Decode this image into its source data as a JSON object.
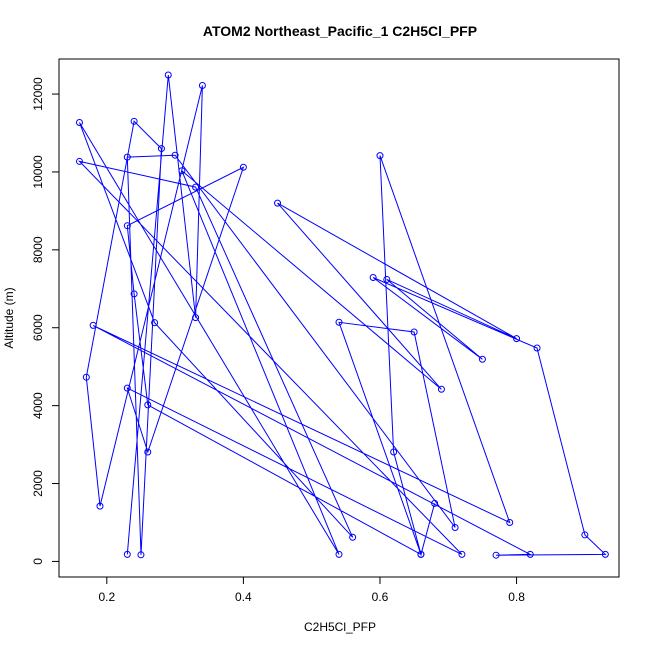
{
  "chart_data": {
    "type": "line",
    "title": "ATOM2 Northeast_Pacific_1 C2H5Cl_PFP",
    "xlabel": "C2H5Cl_PFP",
    "ylabel": "Altitude (m)",
    "xlim": [
      0.13,
      0.95
    ],
    "ylim": [
      -400,
      12900
    ],
    "x_ticks": [
      0.2,
      0.4,
      0.6,
      0.8
    ],
    "x_tick_labels": [
      "0.2",
      "0.4",
      "0.6",
      "0.8"
    ],
    "y_ticks": [
      0,
      2000,
      4000,
      6000,
      8000,
      10000,
      12000
    ],
    "y_tick_labels": [
      "0",
      "2000",
      "4000",
      "6000",
      "8000",
      "10000",
      "12000"
    ],
    "grid": false,
    "legend": false,
    "markers": "open-circle",
    "colors": {
      "series": "#0000ff",
      "frame": "#000000"
    },
    "series": [
      {
        "points": [
          [
            0.23,
            180
          ],
          [
            0.29,
            12490
          ],
          [
            0.33,
            6260
          ],
          [
            0.34,
            12220
          ],
          [
            0.19,
            1420
          ],
          [
            0.17,
            4730
          ],
          [
            0.24,
            11300
          ],
          [
            0.28,
            10600
          ],
          [
            0.25,
            170
          ],
          [
            0.23,
            10380
          ],
          [
            0.3,
            10430
          ],
          [
            0.71,
            870
          ],
          [
            0.65,
            5890
          ],
          [
            0.54,
            6140
          ],
          [
            0.66,
            180
          ],
          [
            0.26,
            4020
          ],
          [
            0.24,
            6870
          ],
          [
            0.23,
            8620
          ],
          [
            0.4,
            10120
          ],
          [
            0.26,
            2810
          ],
          [
            0.23,
            4450
          ],
          [
            0.72,
            180
          ],
          [
            0.16,
            10270
          ],
          [
            0.33,
            9610
          ],
          [
            0.56,
            620
          ],
          [
            0.27,
            6130
          ],
          [
            0.16,
            11270
          ],
          [
            0.54,
            180
          ],
          [
            0.31,
            10030
          ],
          [
            0.69,
            4420
          ],
          [
            0.45,
            9200
          ],
          [
            0.8,
            5720
          ],
          [
            0.61,
            7240
          ],
          [
            0.75,
            5190
          ],
          [
            0.59,
            7290
          ],
          [
            0.83,
            5480
          ],
          [
            0.9,
            680
          ],
          [
            0.93,
            180
          ],
          [
            0.77,
            160
          ],
          [
            0.82,
            180
          ],
          [
            0.18,
            6060
          ],
          [
            0.79,
            1000
          ],
          [
            0.6,
            10420
          ],
          [
            0.62,
            2810
          ],
          [
            0.66,
            180
          ],
          [
            0.68,
            1490
          ]
        ]
      }
    ]
  }
}
